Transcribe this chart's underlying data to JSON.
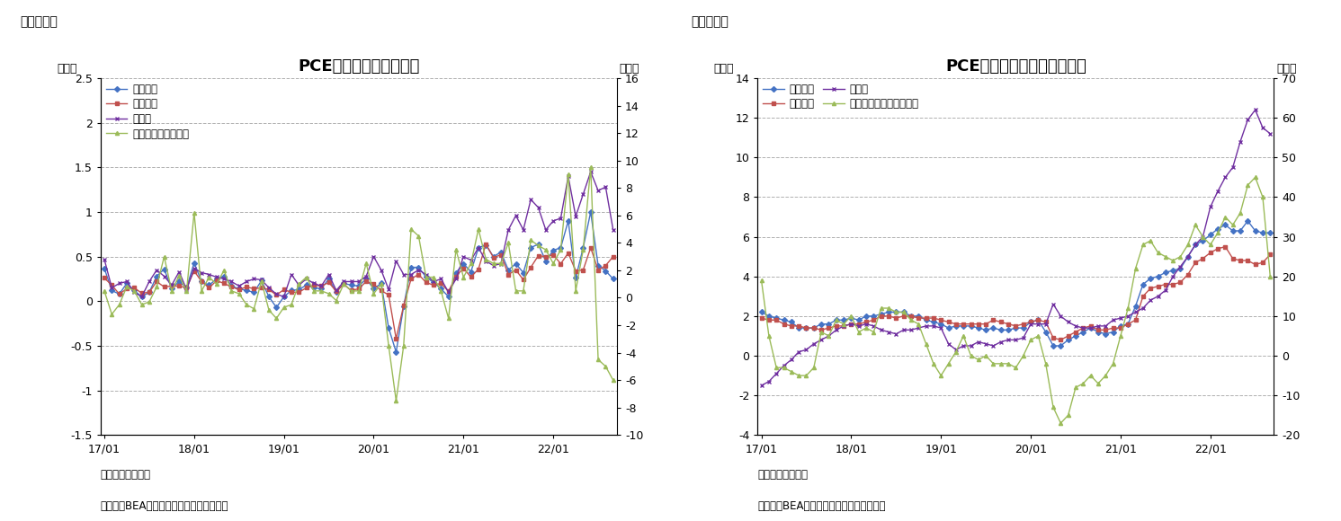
{
  "chart1": {
    "title": "PCE価格指数（前月比）",
    "label_left": "（％）",
    "label_right": "（％）",
    "ylim_left": [
      -1.5,
      2.5
    ],
    "ylim_right": [
      -10,
      16
    ],
    "yticks_left": [
      -1.5,
      -1.0,
      -0.5,
      0.0,
      0.5,
      1.0,
      1.5,
      2.0,
      2.5
    ],
    "yticks_right": [
      -10,
      -8,
      -6,
      -4,
      -2,
      0,
      2,
      4,
      6,
      8,
      10,
      12,
      14,
      16
    ],
    "xtick_labels": [
      "17/01",
      "18/01",
      "19/01",
      "20/01",
      "21/01",
      "22/01"
    ],
    "legend_items": [
      "総合指数",
      "コア指数",
      "食料品",
      "エネルギー（右軸）"
    ],
    "series_colors": [
      "#4472c4",
      "#c0504d",
      "#7030a0",
      "#9bbb59"
    ],
    "series_markers": [
      "D",
      "s",
      "x",
      "^"
    ],
    "note1": "（注）季節調整済",
    "note2": "（資料）BEAよりニッセイ基礎研究所作成",
    "total": [
      0.37,
      0.12,
      0.08,
      0.2,
      0.12,
      0.05,
      0.1,
      0.28,
      0.36,
      0.14,
      0.22,
      0.15,
      0.43,
      0.22,
      0.18,
      0.25,
      0.28,
      0.17,
      0.14,
      0.12,
      0.1,
      0.23,
      0.05,
      -0.07,
      0.05,
      0.12,
      0.13,
      0.18,
      0.15,
      0.14,
      0.25,
      0.1,
      0.2,
      0.18,
      0.17,
      0.25,
      0.14,
      0.2,
      -0.3,
      -0.57,
      -0.06,
      0.38,
      0.38,
      0.27,
      0.21,
      0.14,
      0.05,
      0.32,
      0.42,
      0.33,
      0.6,
      0.63,
      0.5,
      0.55,
      0.35,
      0.42,
      0.32,
      0.6,
      0.64,
      0.45,
      0.57,
      0.6,
      0.9,
      0.26,
      0.6,
      1.0,
      0.4,
      0.34,
      0.25
    ],
    "core": [
      0.26,
      0.18,
      0.08,
      0.14,
      0.15,
      0.09,
      0.1,
      0.22,
      0.16,
      0.17,
      0.17,
      0.15,
      0.34,
      0.22,
      0.15,
      0.23,
      0.2,
      0.16,
      0.13,
      0.16,
      0.14,
      0.15,
      0.13,
      0.07,
      0.13,
      0.1,
      0.1,
      0.15,
      0.18,
      0.17,
      0.21,
      0.11,
      0.19,
      0.12,
      0.14,
      0.22,
      0.19,
      0.12,
      0.07,
      -0.42,
      -0.05,
      0.25,
      0.3,
      0.21,
      0.18,
      0.2,
      0.11,
      0.28,
      0.37,
      0.27,
      0.36,
      0.64,
      0.49,
      0.52,
      0.3,
      0.35,
      0.24,
      0.38,
      0.51,
      0.5,
      0.52,
      0.42,
      0.54,
      0.34,
      0.35,
      0.6,
      0.35,
      0.4,
      0.5
    ],
    "food": [
      0.47,
      0.15,
      0.2,
      0.22,
      0.1,
      0.05,
      0.22,
      0.35,
      0.28,
      0.18,
      0.33,
      0.13,
      0.37,
      0.32,
      0.3,
      0.27,
      0.25,
      0.22,
      0.17,
      0.22,
      0.25,
      0.24,
      0.15,
      0.08,
      0.05,
      0.3,
      0.18,
      0.25,
      0.2,
      0.17,
      0.3,
      0.12,
      0.22,
      0.22,
      0.22,
      0.28,
      0.5,
      0.35,
      0.13,
      0.45,
      0.3,
      0.3,
      0.35,
      0.3,
      0.22,
      0.25,
      0.1,
      0.25,
      0.5,
      0.46,
      0.6,
      0.45,
      0.4,
      0.42,
      0.8,
      0.96,
      0.8,
      1.14,
      1.05,
      0.8,
      0.9,
      0.93,
      1.4,
      0.95,
      1.2,
      1.45,
      1.24,
      1.28,
      0.8
    ],
    "energy": [
      0.5,
      -1.2,
      -0.5,
      0.8,
      0.5,
      -0.5,
      -0.3,
      0.8,
      3.0,
      0.5,
      1.6,
      0.5,
      6.2,
      0.5,
      1.5,
      1.0,
      2.0,
      0.5,
      0.3,
      -0.5,
      -0.8,
      1.2,
      -0.9,
      -1.5,
      -0.7,
      -0.5,
      1.0,
      1.5,
      0.5,
      0.5,
      0.3,
      -0.2,
      1.0,
      0.5,
      0.5,
      2.5,
      0.3,
      1.0,
      -3.5,
      -7.5,
      -3.5,
      5.0,
      4.5,
      1.5,
      1.5,
      0.5,
      -1.5,
      3.5,
      1.5,
      2.5,
      5.0,
      2.8,
      2.5,
      2.5,
      4.0,
      0.5,
      0.5,
      4.2,
      3.8,
      3.5,
      2.5,
      3.5,
      9.0,
      0.5,
      3.5,
      9.5,
      -4.5,
      -5.0,
      -6.0
    ]
  },
  "chart2": {
    "title": "PCE価格指数（前年同月比）",
    "label_left": "（％）",
    "label_right": "（％）",
    "ylim_left": [
      -4,
      14
    ],
    "ylim_right": [
      -20,
      70
    ],
    "yticks_left": [
      -4,
      -2,
      0,
      2,
      4,
      6,
      8,
      10,
      12,
      14
    ],
    "yticks_right": [
      -20,
      -10,
      0,
      10,
      20,
      30,
      40,
      50,
      60,
      70
    ],
    "xtick_labels": [
      "17/01",
      "18/01",
      "19/01",
      "20/01",
      "21/01",
      "22/01"
    ],
    "legend_items_col1": [
      "総合指数",
      "食料品"
    ],
    "legend_items_col2": [
      "コア指数",
      "エネルギー関連（右軸）"
    ],
    "series_colors": [
      "#4472c4",
      "#c0504d",
      "#7030a0",
      "#9bbb59"
    ],
    "series_markers": [
      "D",
      "s",
      "x",
      "^"
    ],
    "note1": "（注）季節調整済",
    "note2": "（資料）BEAよりニッセイ基礎研究所作成",
    "total": [
      2.2,
      2.0,
      1.9,
      1.8,
      1.7,
      1.4,
      1.4,
      1.4,
      1.6,
      1.6,
      1.8,
      1.8,
      1.9,
      1.8,
      2.0,
      2.0,
      2.1,
      2.2,
      2.2,
      2.2,
      2.0,
      2.0,
      1.8,
      1.7,
      1.6,
      1.4,
      1.5,
      1.5,
      1.5,
      1.4,
      1.3,
      1.4,
      1.3,
      1.3,
      1.4,
      1.4,
      1.7,
      1.8,
      1.2,
      0.5,
      0.5,
      0.8,
      1.0,
      1.2,
      1.4,
      1.2,
      1.1,
      1.2,
      1.5,
      1.6,
      2.5,
      3.6,
      3.9,
      4.0,
      4.2,
      4.3,
      4.4,
      5.0,
      5.6,
      5.8,
      6.1,
      6.4,
      6.6,
      6.3,
      6.3,
      6.8,
      6.3,
      6.2,
      6.2
    ],
    "core": [
      1.9,
      1.8,
      1.8,
      1.6,
      1.5,
      1.5,
      1.4,
      1.4,
      1.3,
      1.4,
      1.5,
      1.5,
      1.6,
      1.6,
      1.7,
      1.8,
      2.0,
      2.0,
      1.9,
      2.0,
      2.0,
      1.9,
      1.9,
      1.9,
      1.8,
      1.7,
      1.6,
      1.6,
      1.6,
      1.6,
      1.6,
      1.8,
      1.7,
      1.6,
      1.5,
      1.6,
      1.7,
      1.8,
      1.7,
      0.9,
      0.8,
      1.0,
      1.2,
      1.4,
      1.5,
      1.3,
      1.3,
      1.4,
      1.4,
      1.6,
      1.8,
      3.0,
      3.4,
      3.5,
      3.6,
      3.6,
      3.7,
      4.1,
      4.7,
      4.9,
      5.2,
      5.4,
      5.5,
      4.9,
      4.8,
      4.8,
      4.6,
      4.7,
      5.1
    ],
    "food": [
      -1.5,
      -1.3,
      -0.9,
      -0.5,
      -0.2,
      0.2,
      0.3,
      0.6,
      0.8,
      1.0,
      1.3,
      1.5,
      1.6,
      1.5,
      1.6,
      1.5,
      1.3,
      1.2,
      1.1,
      1.3,
      1.3,
      1.4,
      1.5,
      1.5,
      1.4,
      0.6,
      0.3,
      0.5,
      0.5,
      0.7,
      0.6,
      0.5,
      0.7,
      0.8,
      0.8,
      0.9,
      1.6,
      1.6,
      1.6,
      2.6,
      2.0,
      1.7,
      1.5,
      1.4,
      1.4,
      1.5,
      1.5,
      1.8,
      1.9,
      2.0,
      2.2,
      2.4,
      2.8,
      3.0,
      3.3,
      4.0,
      4.5,
      5.0,
      5.6,
      6.0,
      7.5,
      8.3,
      9.0,
      9.5,
      10.8,
      11.9,
      12.4,
      11.5,
      11.2
    ],
    "energy": [
      19,
      5,
      -3,
      -3,
      -4,
      -5,
      -5,
      -3,
      6,
      5,
      9,
      8,
      10,
      6,
      7,
      6,
      12,
      12,
      11,
      11,
      9,
      8,
      3,
      -2,
      -5,
      -2,
      1,
      5,
      0,
      -1,
      0,
      -2,
      -2,
      -2,
      -3,
      0,
      4,
      5,
      -2,
      -13,
      -17,
      -15,
      -8,
      -7,
      -5,
      -7,
      -5,
      -2,
      5,
      12,
      22,
      28,
      29,
      26,
      25,
      24,
      25,
      28,
      33,
      30,
      28,
      31,
      35,
      33,
      36,
      43,
      45,
      40,
      20
    ]
  },
  "fig6_label": "（図表６）",
  "fig7_label": "（図表７）",
  "background_color": "#ffffff",
  "grid_color": "#b0b0b0",
  "title_font_size": 13
}
